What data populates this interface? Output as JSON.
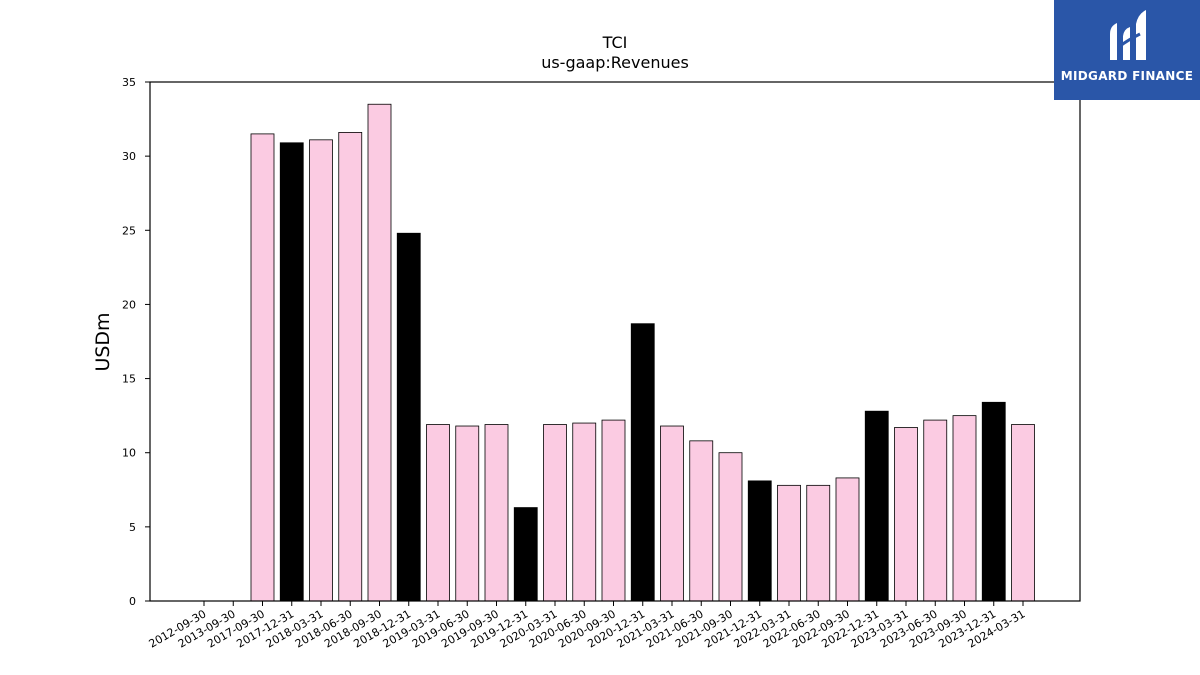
{
  "chart_data": {
    "type": "bar",
    "title": "TCI",
    "subtitle": "us-gaap:Revenues",
    "ylabel": "USDm",
    "xlabel": "",
    "ylim": [
      0,
      35
    ],
    "yticks": [
      0,
      5,
      10,
      15,
      20,
      25,
      30,
      35
    ],
    "grid": false,
    "colors": {
      "q4": "#000000",
      "other": "#fbcbe2",
      "edge": "#000000"
    },
    "categories": [
      "2012-09-30",
      "2013-09-30",
      "2017-09-30",
      "2017-12-31",
      "2018-03-31",
      "2018-06-30",
      "2018-09-30",
      "2018-12-31",
      "2019-03-31",
      "2019-06-30",
      "2019-09-30",
      "2019-12-31",
      "2020-03-31",
      "2020-06-30",
      "2020-09-30",
      "2020-12-31",
      "2021-03-31",
      "2021-06-30",
      "2021-09-30",
      "2021-12-31",
      "2022-03-31",
      "2022-06-30",
      "2022-09-30",
      "2022-12-31",
      "2023-03-31",
      "2023-06-30",
      "2023-09-30",
      "2023-12-31",
      "2024-03-31"
    ],
    "values": [
      0,
      0,
      31.5,
      30.9,
      31.1,
      31.6,
      33.5,
      24.8,
      11.9,
      11.8,
      11.9,
      6.3,
      11.9,
      12.0,
      12.2,
      18.7,
      11.8,
      10.8,
      10.0,
      8.1,
      7.8,
      7.8,
      8.3,
      12.8,
      11.7,
      12.2,
      12.5,
      13.4,
      11.9
    ],
    "series": [
      {
        "values": [
          0,
          0,
          31.5,
          30.9,
          31.1,
          31.6,
          33.5,
          24.8,
          11.9,
          11.8,
          11.9,
          6.3,
          11.9,
          12.0,
          12.2,
          18.7,
          11.8,
          10.8,
          10.0,
          8.1,
          7.8,
          7.8,
          8.3,
          12.8,
          11.7,
          12.2,
          12.5,
          13.4,
          11.9
        ]
      }
    ]
  },
  "logo": {
    "text": "MIDGARD FINANCE",
    "color": "#2a56a8"
  }
}
